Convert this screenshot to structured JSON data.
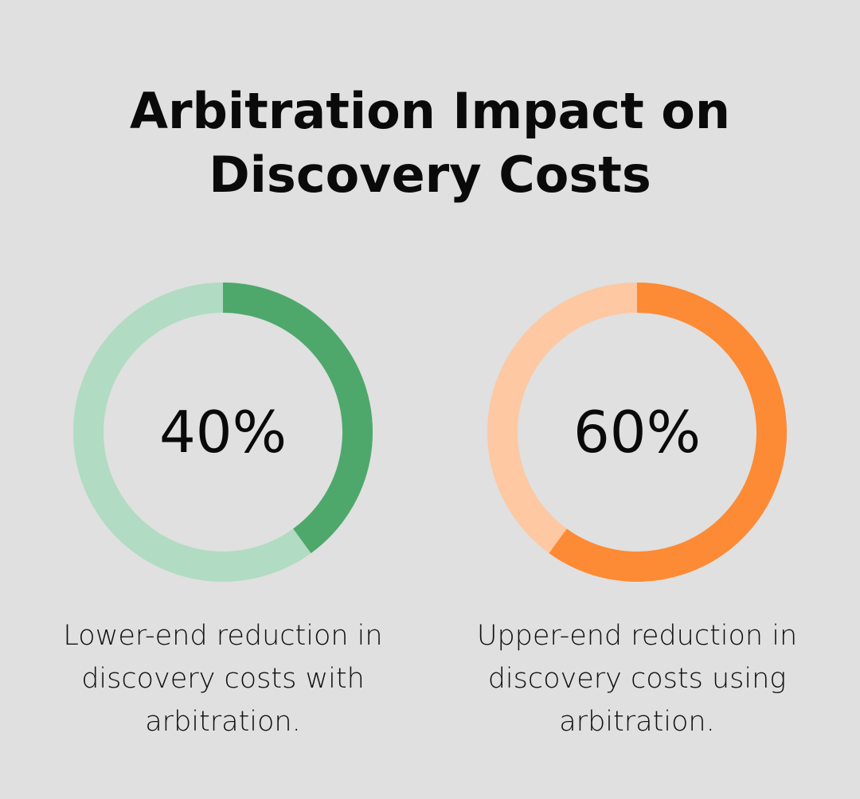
{
  "title_lines": [
    "Arbitration Impact on",
    "Discovery Costs"
  ],
  "chart_data": [
    {
      "type": "pie",
      "value": 40,
      "label": "40%",
      "caption": "Lower-end reduction in discovery costs with arbitration.",
      "color": "#4ea86c",
      "track_color": "#b1dbc2"
    },
    {
      "type": "pie",
      "value": 60,
      "label": "60%",
      "caption": "Upper-end reduction in discovery costs using arbitration.",
      "color": "#fd8a35",
      "track_color": "#fdc8a2"
    }
  ]
}
